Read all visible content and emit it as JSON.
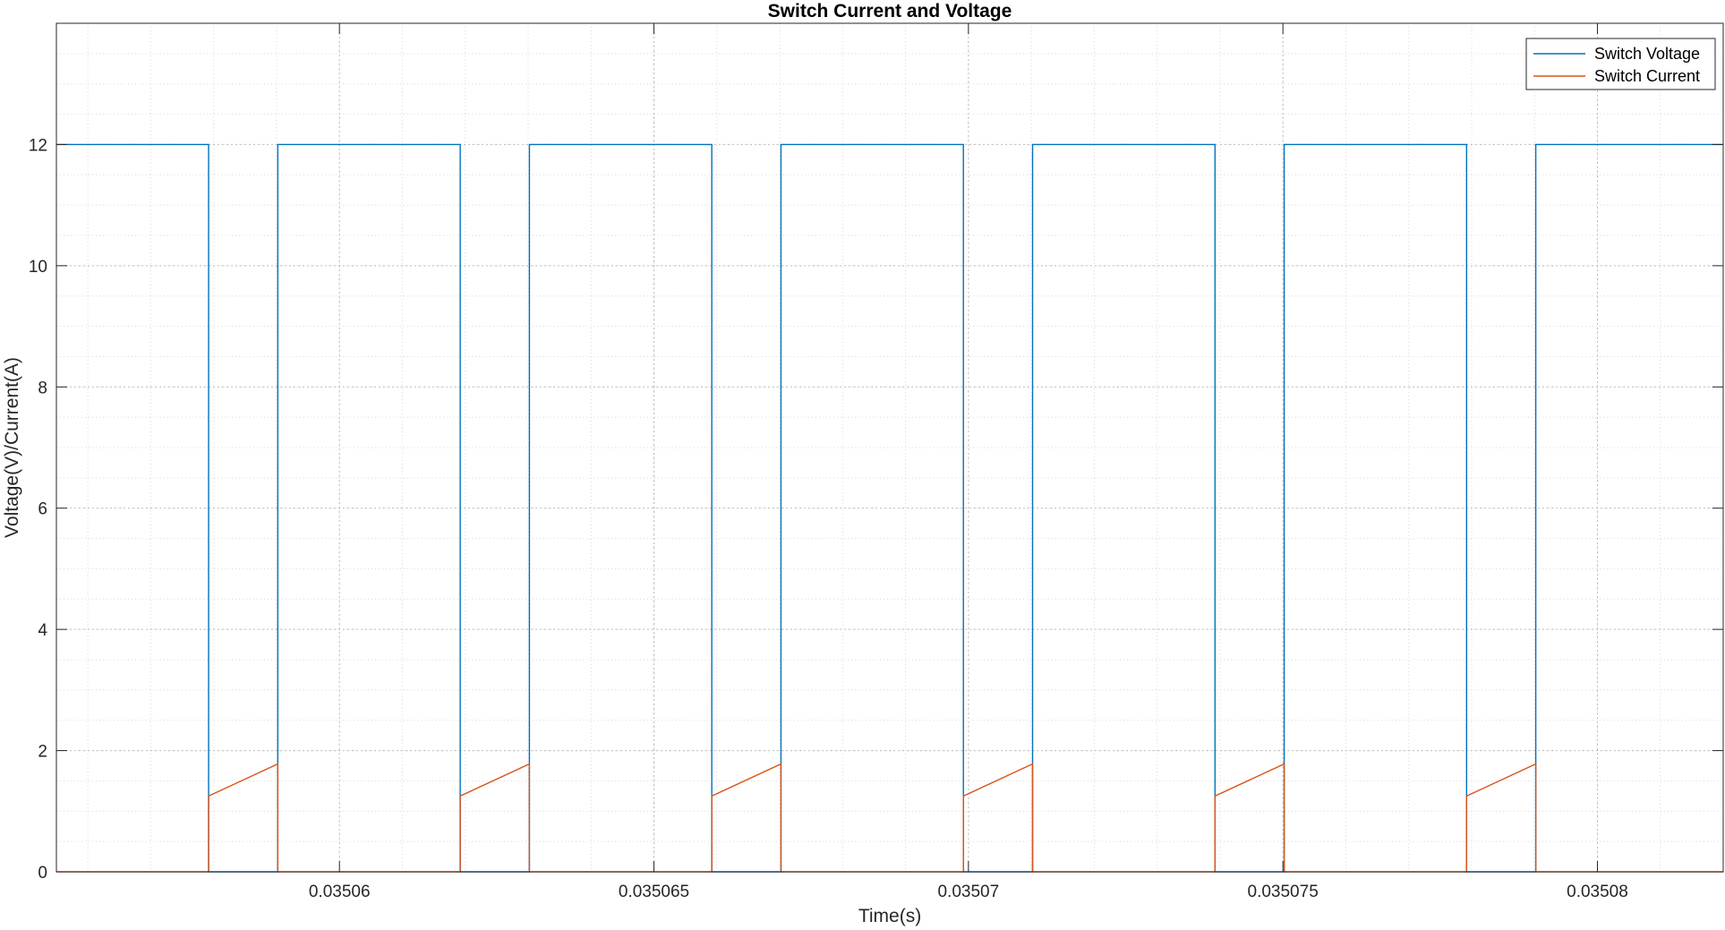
{
  "chart_data": {
    "type": "line",
    "title": "Switch Current and Voltage",
    "xlabel": "Time(s)",
    "ylabel": "Voltage(V)/Current(A)",
    "xlim": [
      0.0350555,
      0.035082
    ],
    "ylim": [
      0,
      14
    ],
    "grid": true,
    "minor_grid": true,
    "legend_position": "top-right",
    "x_ticks": [
      0.03506,
      0.035065,
      0.03507,
      0.035075,
      0.03508
    ],
    "x_tick_labels": [
      "0.03506",
      "0.035065",
      "0.03507",
      "0.035075",
      "0.03508"
    ],
    "y_ticks": [
      0,
      2,
      4,
      6,
      8,
      10,
      12
    ],
    "y_tick_labels": [
      "0",
      "2",
      "4",
      "6",
      "8",
      "10",
      "12"
    ],
    "series": [
      {
        "name": "Switch Voltage",
        "color": "#0072BD",
        "x": [
          0.0350555,
          0.03505792,
          0.03505792,
          0.03505902,
          0.03505902,
          0.03506192,
          0.03506192,
          0.03506302,
          0.03506302,
          0.03506592,
          0.03506592,
          0.03506702,
          0.03506702,
          0.03506992,
          0.03506992,
          0.03507102,
          0.03507102,
          0.03507392,
          0.03507392,
          0.03507502,
          0.03507502,
          0.03507792,
          0.03507792,
          0.03507902,
          0.03507902,
          0.035082
        ],
        "y": [
          12,
          12,
          0,
          0,
          12,
          12,
          0,
          0,
          12,
          12,
          0,
          0,
          12,
          12,
          0,
          0,
          12,
          12,
          0,
          0,
          12,
          12,
          0,
          0,
          12,
          12
        ]
      },
      {
        "name": "Switch Current",
        "color": "#D95319",
        "x": [
          0.0350555,
          0.03505792,
          0.03505792,
          0.03505902,
          0.03505902,
          0.03506192,
          0.03506192,
          0.03506302,
          0.03506302,
          0.03506592,
          0.03506592,
          0.03506702,
          0.03506702,
          0.03506992,
          0.03506992,
          0.03507102,
          0.03507102,
          0.03507392,
          0.03507392,
          0.03507502,
          0.03507502,
          0.03507792,
          0.03507792,
          0.03507902,
          0.03507902,
          0.035082
        ],
        "y": [
          0,
          0,
          1.25,
          1.78,
          0,
          0,
          1.25,
          1.78,
          0,
          0,
          1.25,
          1.78,
          0,
          0,
          1.25,
          1.78,
          0,
          0,
          1.25,
          1.78,
          0,
          0,
          1.25,
          1.78,
          0,
          0
        ]
      }
    ]
  }
}
